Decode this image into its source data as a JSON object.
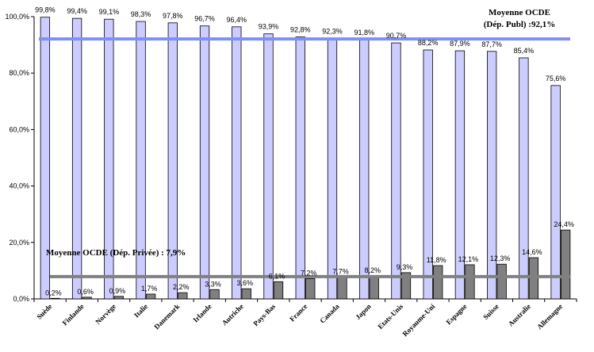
{
  "chart_data": {
    "type": "bar",
    "categories": [
      "Suède",
      "Finlande",
      "Norvège",
      "Italie",
      "Danemark",
      "Irlande",
      "Autriche",
      "Pays-Bas",
      "France",
      "Canada",
      "Japon",
      "Etats-Unis",
      "Royaume-Uni",
      "Espagne",
      "Suisse",
      "Australie",
      "Allemagne"
    ],
    "series": [
      {
        "values": [
          99.8,
          99.4,
          99.1,
          98.3,
          97.8,
          96.7,
          96.4,
          93.9,
          92.8,
          92.3,
          91.8,
          90.7,
          88.2,
          87.9,
          87.7,
          85.4,
          75.6
        ],
        "labels": [
          "99,8%",
          "99,4%",
          "99,1%",
          "98,3%",
          "97,8%",
          "96,7%",
          "96,4%",
          "93,9%",
          "92,8%",
          "92,3%",
          "91,8%",
          "90,7%",
          "88,2%",
          "87,9%",
          "87,7%",
          "85,4%",
          "75,6%"
        ],
        "color": "#ccccff"
      },
      {
        "values": [
          0.2,
          0.6,
          0.9,
          1.7,
          2.2,
          3.3,
          3.6,
          6.1,
          7.2,
          7.7,
          8.2,
          9.3,
          11.8,
          12.1,
          12.3,
          14.6,
          24.4
        ],
        "labels": [
          "0,2%",
          "0,6%",
          "0,9%",
          "1,7%",
          "2,2%",
          "3,3%",
          "3,6%",
          "6,1%",
          "7,2%",
          "7,7%",
          "8,2%",
          "9,3%",
          "11,8%",
          "12,1%",
          "12,3%",
          "14,6%",
          "24,4%"
        ],
        "color": "#808080"
      }
    ],
    "ylim": [
      0,
      100
    ],
    "yticks": [
      0,
      20,
      40,
      60,
      80,
      100
    ],
    "ytick_labels": [
      "0,0%",
      "20,0%",
      "40,0%",
      "60,0%",
      "80,0%",
      "100,0%"
    ],
    "reference_lines": [
      {
        "value": 92.1,
        "label_line1": "Moyenne OCDE",
        "label_line2": "(Dép. Publ) :92,1%",
        "color": "#7f8ff5"
      },
      {
        "value": 7.9,
        "label_line1": "Moyenne OCDE (Dép. Privée) : 7,9%",
        "color": "#808080"
      }
    ],
    "grid": false
  }
}
